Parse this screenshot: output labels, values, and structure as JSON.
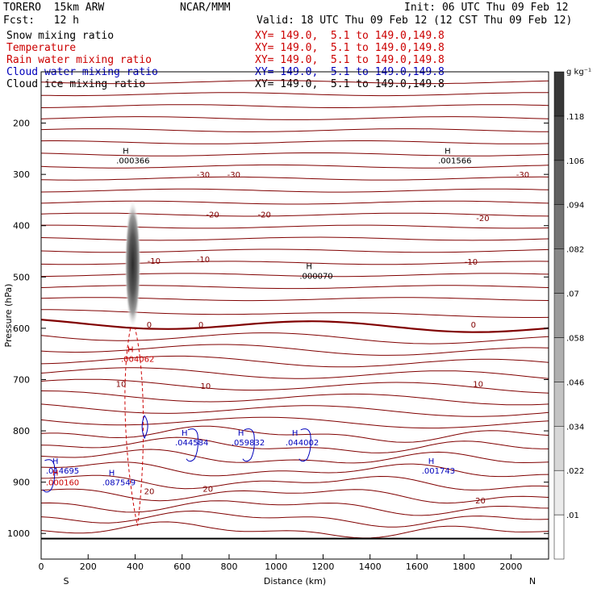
{
  "header": {
    "model": "TORERO  15km ARW",
    "org": "NCAR/MMM",
    "init": "Init: 06 UTC Thu 09 Feb 12",
    "fcst": "Fcst:   12 h",
    "valid": "Valid: 18 UTC Thu 09 Feb 12 (12 CST Thu 09 Feb 12)"
  },
  "fields": [
    {
      "name": "Snow mixing ratio",
      "color": "#000000",
      "xy": "XY= 149.0,  5.1 to 149.0,149.8"
    },
    {
      "name": "Temperature",
      "color": "#cc0000",
      "xy": "XY= 149.0,  5.1 to 149.0,149.8"
    },
    {
      "name": "Rain water mixing ratio",
      "color": "#cc0000",
      "xy": "XY= 149.0,  5.1 to 149.0,149.8"
    },
    {
      "name": "Cloud water mixing ratio",
      "color": "#0000bb",
      "xy": "XY= 149.0,  5.1 to 149.0,149.8"
    },
    {
      "name": "Cloud ice mixing ratio",
      "color": "#000000",
      "xy": "XY= 149.0,  5.1 to 149.0,149.8"
    }
  ],
  "chart_data": {
    "type": "cross-section",
    "xlabel": "Distance (km)",
    "ylabel": "Pressure (hPa)",
    "x_ticks": [
      "0",
      "200",
      "400",
      "600",
      "800",
      "1000",
      "1200",
      "1400",
      "1600",
      "1800",
      "2000"
    ],
    "y_ticks": [
      "200",
      "300",
      "400",
      "500",
      "600",
      "700",
      "800",
      "900",
      "1000"
    ],
    "xlim": [
      0,
      2160
    ],
    "ylim": [
      1050,
      100
    ],
    "x_end_labels": {
      "left": "S",
      "right": "N"
    },
    "colorbar": {
      "unit": "g kg⁻¹",
      "ticks": [
        ".01",
        ".022",
        ".034",
        ".046",
        ".058",
        ".07",
        ".082",
        ".094",
        ".106",
        ".118"
      ]
    },
    "temperature_labels": [
      {
        "text": "-30",
        "x": 690,
        "p": 300
      },
      {
        "text": "-30",
        "x": 820,
        "p": 300
      },
      {
        "text": "-30",
        "x": 2050,
        "p": 300
      },
      {
        "text": "-20",
        "x": 730,
        "p": 378
      },
      {
        "text": "-20",
        "x": 950,
        "p": 378
      },
      {
        "text": "-20",
        "x": 1880,
        "p": 385
      },
      {
        "text": "-10",
        "x": 480,
        "p": 468
      },
      {
        "text": "-10",
        "x": 690,
        "p": 465
      },
      {
        "text": "-10",
        "x": 1830,
        "p": 470
      },
      {
        "text": "0",
        "x": 460,
        "p": 592
      },
      {
        "text": "0",
        "x": 680,
        "p": 592
      },
      {
        "text": "0",
        "x": 1840,
        "p": 592
      },
      {
        "text": "10",
        "x": 340,
        "p": 708
      },
      {
        "text": "10",
        "x": 700,
        "p": 712
      },
      {
        "text": "10",
        "x": 1860,
        "p": 708
      },
      {
        "text": "20",
        "x": 460,
        "p": 917
      },
      {
        "text": "20",
        "x": 710,
        "p": 912
      },
      {
        "text": "20",
        "x": 1870,
        "p": 935
      }
    ],
    "maxima": [
      {
        "text": ".000366",
        "x": 320,
        "p": 275,
        "color": "#000000"
      },
      {
        "text": ".001566",
        "x": 1690,
        "p": 275,
        "color": "#000000"
      },
      {
        "text": ".000070",
        "x": 1100,
        "p": 500,
        "color": "#000000"
      },
      {
        "text": ".004062",
        "x": 340,
        "p": 662,
        "color": "#cc0000"
      },
      {
        "text": ".044584",
        "x": 570,
        "p": 825,
        "color": "#0000bb"
      },
      {
        "text": ".059832",
        "x": 810,
        "p": 825,
        "color": "#0000bb"
      },
      {
        "text": ".044002",
        "x": 1040,
        "p": 825,
        "color": "#0000bb"
      },
      {
        "text": ".014695",
        "x": 20,
        "p": 880,
        "color": "#0000bb"
      },
      {
        "text": ".000160",
        "x": 20,
        "p": 903,
        "color": "#cc0000"
      },
      {
        "text": ".087549",
        "x": 260,
        "p": 903,
        "color": "#0000bb"
      },
      {
        "text": ".001743",
        "x": 1620,
        "p": 880,
        "color": "#0000bb"
      }
    ],
    "lines": {
      "frame": "#000000",
      "temperature": "#800000"
    }
  }
}
